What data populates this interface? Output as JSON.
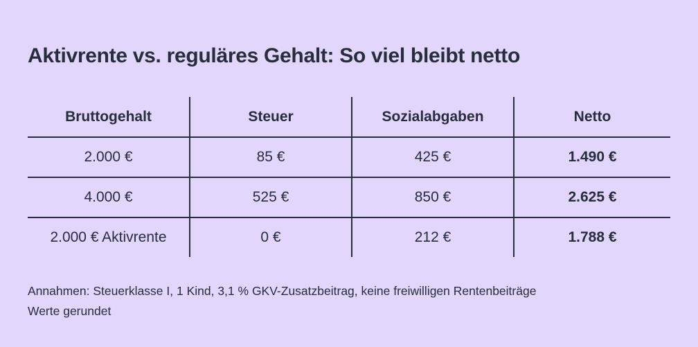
{
  "title": "Aktivrente vs. reguläres Gehalt: So viel bleibt netto",
  "table": {
    "headers": [
      "Bruttogehalt",
      "Steuer",
      "Sozialabgaben",
      "Netto"
    ],
    "rows": [
      [
        "2.000 €",
        "85 €",
        "425 €",
        "1.490 €"
      ],
      [
        "4.000 €",
        "525 €",
        "850 €",
        "2.625 €"
      ],
      [
        "2.000 € Aktivrente",
        "0 €",
        "212 €",
        "1.788 €"
      ]
    ]
  },
  "notes": [
    "Annahmen: Steuerklasse I, 1 Kind, 3,1 % GKV-Zusatzbeitrag, keine freiwilligen Rentenbeiträge",
    "Werte gerundet"
  ],
  "colors": {
    "background": "#e3d6fc",
    "text": "#262d3b"
  }
}
